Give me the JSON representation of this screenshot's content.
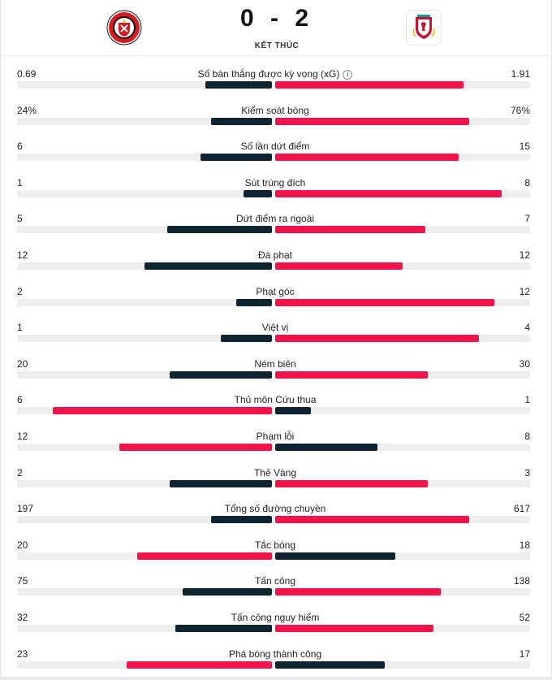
{
  "match": {
    "score": "0 - 2",
    "status": "KẾT THÚC",
    "home_badge": "sheffield-united-crest",
    "away_badge": "liverpool-crest"
  },
  "colors": {
    "winner": "#f2134a",
    "loser": "#0e2430",
    "track": "#eeeeee"
  },
  "stats": [
    {
      "label": "Số bàn thắng được kỳ vọng (xG)",
      "home": "0.69",
      "away": "1.91",
      "home_frac": 0.26,
      "away_frac": 0.74,
      "info": true
    },
    {
      "label": "Kiểm soát bóng",
      "home": "24%",
      "away": "76%",
      "home_frac": 0.24,
      "away_frac": 0.76
    },
    {
      "label": "Số lần dứt điểm",
      "home": "6",
      "away": "15",
      "home_frac": 0.28,
      "away_frac": 0.72
    },
    {
      "label": "Sút trúng đích",
      "home": "1",
      "away": "8",
      "home_frac": 0.11,
      "away_frac": 0.89
    },
    {
      "label": "Dứt điểm ra ngoài",
      "home": "5",
      "away": "7",
      "home_frac": 0.41,
      "away_frac": 0.59
    },
    {
      "label": "Đá phạt",
      "home": "12",
      "away": "12",
      "home_frac": 0.5,
      "away_frac": 0.5
    },
    {
      "label": "Phạt góc",
      "home": "2",
      "away": "12",
      "home_frac": 0.14,
      "away_frac": 0.86
    },
    {
      "label": "Việt vị",
      "home": "1",
      "away": "4",
      "home_frac": 0.2,
      "away_frac": 0.8
    },
    {
      "label": "Ném biên",
      "home": "20",
      "away": "30",
      "home_frac": 0.4,
      "away_frac": 0.6
    },
    {
      "label": "Thủ môn Cứu thua",
      "home": "6",
      "away": "1",
      "home_frac": 0.86,
      "away_frac": 0.14
    },
    {
      "label": "Phạm lỗi",
      "home": "12",
      "away": "8",
      "home_frac": 0.6,
      "away_frac": 0.4
    },
    {
      "label": "Thẻ Vàng",
      "home": "2",
      "away": "3",
      "home_frac": 0.4,
      "away_frac": 0.6
    },
    {
      "label": "Tổng số đường chuyền",
      "home": "197",
      "away": "617",
      "home_frac": 0.24,
      "away_frac": 0.76
    },
    {
      "label": "Tắc bóng",
      "home": "20",
      "away": "18",
      "home_frac": 0.53,
      "away_frac": 0.47
    },
    {
      "label": "Tấn công",
      "home": "75",
      "away": "138",
      "home_frac": 0.35,
      "away_frac": 0.65
    },
    {
      "label": "Tấn công nguy hiểm",
      "home": "32",
      "away": "52",
      "home_frac": 0.38,
      "away_frac": 0.62
    },
    {
      "label": "Phá bóng thành công",
      "home": "23",
      "away": "17",
      "home_frac": 0.57,
      "away_frac": 0.43
    }
  ]
}
